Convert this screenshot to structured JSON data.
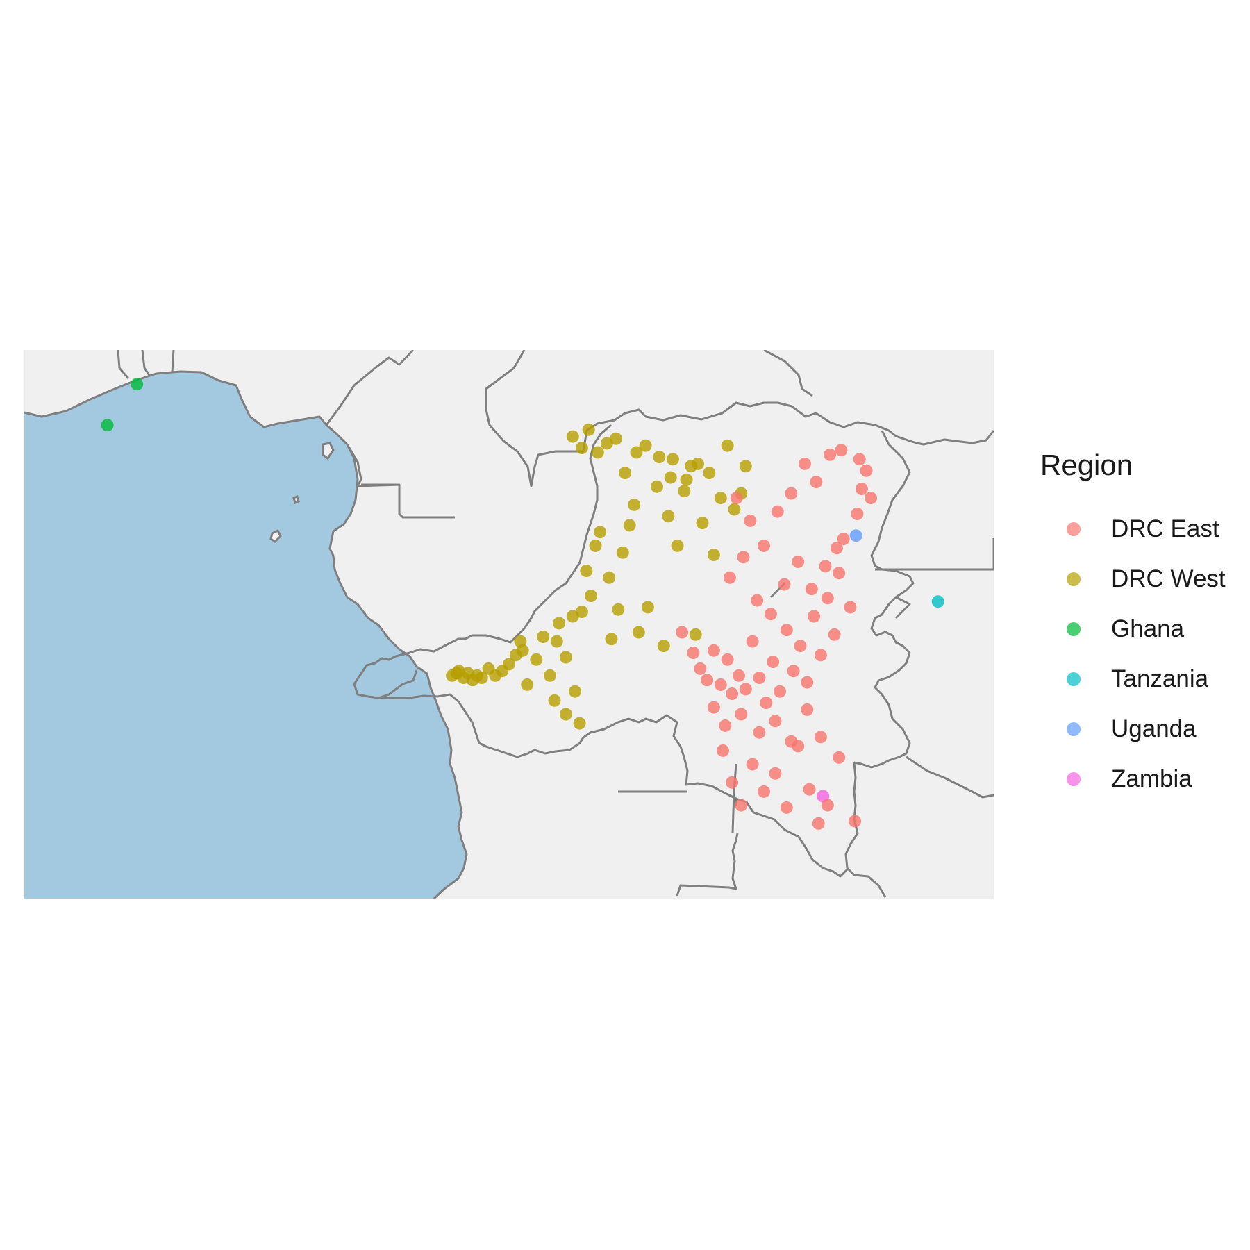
{
  "legend": {
    "title": "Region",
    "items": [
      {
        "label": "DRC East",
        "color": "#F8766D"
      },
      {
        "label": "DRC West",
        "color": "#B79F00"
      },
      {
        "label": "Ghana",
        "color": "#00BA38"
      },
      {
        "label": "Tanzania",
        "color": "#00BFC4"
      },
      {
        "label": "Uganda",
        "color": "#619CFF"
      },
      {
        "label": "Zambia",
        "color": "#F564E3"
      }
    ]
  },
  "colors": {
    "land": "#F0F0F0",
    "ocean": "#A3C9E0",
    "border": "#7f7f7f"
  },
  "chart_data": {
    "type": "scatter",
    "description_free": true,
    "grid": false,
    "legend_position": "right",
    "series": [
      {
        "name": "Ghana",
        "points": [
          [
            -1.55,
            6.9
          ],
          [
            -2.85,
            5.1
          ]
        ]
      },
      {
        "name": "Uganda",
        "points": [
          [
            30.05,
            0.25
          ]
        ]
      },
      {
        "name": "Tanzania",
        "points": [
          [
            33.65,
            -2.65
          ]
        ]
      },
      {
        "name": "Zambia",
        "points": [
          [
            28.6,
            -11.2
          ]
        ]
      },
      {
        "name": "DRC West",
        "points": [
          [
            12.3,
            -5.9
          ],
          [
            12.5,
            -5.8
          ],
          [
            12.6,
            -5.7
          ],
          [
            12.8,
            -6.0
          ],
          [
            13.0,
            -5.8
          ],
          [
            13.2,
            -6.1
          ],
          [
            13.4,
            -5.9
          ],
          [
            13.6,
            -6.0
          ],
          [
            13.9,
            -5.6
          ],
          [
            14.2,
            -5.9
          ],
          [
            14.5,
            -5.7
          ],
          [
            14.8,
            -5.4
          ],
          [
            15.1,
            -5.0
          ],
          [
            15.3,
            -4.4
          ],
          [
            15.4,
            -4.8
          ],
          [
            15.6,
            -6.3
          ],
          [
            16.0,
            -5.2
          ],
          [
            16.3,
            -4.2
          ],
          [
            16.6,
            -5.9
          ],
          [
            16.9,
            -4.4
          ],
          [
            17.0,
            -3.6
          ],
          [
            17.3,
            -5.1
          ],
          [
            17.6,
            -3.3
          ],
          [
            17.7,
            -6.6
          ],
          [
            18.0,
            -3.1
          ],
          [
            18.2,
            -1.3
          ],
          [
            18.4,
            -2.4
          ],
          [
            18.6,
            -0.2
          ],
          [
            18.8,
            0.4
          ],
          [
            19.2,
            -1.6
          ],
          [
            19.3,
            -4.3
          ],
          [
            19.6,
            -3.0
          ],
          [
            19.8,
            -0.5
          ],
          [
            20.1,
            0.7
          ],
          [
            20.3,
            1.6
          ],
          [
            20.5,
            -4.0
          ],
          [
            20.9,
            -2.9
          ],
          [
            21.3,
            2.4
          ],
          [
            21.6,
            -4.6
          ],
          [
            21.8,
            1.1
          ],
          [
            22.0,
            3.6
          ],
          [
            22.2,
            -0.2
          ],
          [
            22.5,
            2.2
          ],
          [
            22.8,
            3.3
          ],
          [
            23.0,
            -4.1
          ],
          [
            23.3,
            0.8
          ],
          [
            23.6,
            3.0
          ],
          [
            23.8,
            -0.6
          ],
          [
            24.1,
            1.9
          ],
          [
            24.4,
            4.2
          ],
          [
            24.7,
            1.4
          ],
          [
            25.0,
            2.1
          ],
          [
            25.2,
            3.3
          ],
          [
            17.6,
            4.6
          ],
          [
            18.0,
            4.1
          ],
          [
            18.3,
            4.9
          ],
          [
            18.7,
            3.9
          ],
          [
            19.1,
            4.3
          ],
          [
            19.5,
            4.5
          ],
          [
            19.9,
            3.0
          ],
          [
            20.4,
            3.9
          ],
          [
            20.8,
            4.2
          ],
          [
            21.4,
            3.7
          ],
          [
            21.9,
            2.8
          ],
          [
            22.6,
            2.7
          ],
          [
            23.1,
            3.4
          ],
          [
            16.8,
            -7.0
          ],
          [
            17.3,
            -7.6
          ],
          [
            17.9,
            -8.0
          ]
        ]
      },
      {
        "name": "DRC East",
        "points": [
          [
            22.4,
            -4.0
          ],
          [
            22.9,
            -4.9
          ],
          [
            23.2,
            -5.6
          ],
          [
            23.5,
            -6.1
          ],
          [
            23.8,
            -4.8
          ],
          [
            24.1,
            -6.3
          ],
          [
            24.4,
            -5.2
          ],
          [
            24.6,
            -6.7
          ],
          [
            24.9,
            -5.9
          ],
          [
            25.2,
            -6.5
          ],
          [
            25.5,
            -4.4
          ],
          [
            25.8,
            -6.0
          ],
          [
            26.1,
            -7.1
          ],
          [
            26.4,
            -5.3
          ],
          [
            26.7,
            -6.6
          ],
          [
            27.0,
            -3.9
          ],
          [
            27.3,
            -5.7
          ],
          [
            27.6,
            -4.6
          ],
          [
            27.9,
            -6.2
          ],
          [
            28.2,
            -3.3
          ],
          [
            28.5,
            -5.0
          ],
          [
            28.8,
            -2.5
          ],
          [
            29.1,
            -4.1
          ],
          [
            29.3,
            -1.4
          ],
          [
            29.5,
            0.1
          ],
          [
            29.8,
            -2.9
          ],
          [
            30.1,
            1.2
          ],
          [
            30.3,
            2.3
          ],
          [
            30.5,
            3.1
          ],
          [
            30.7,
            1.9
          ],
          [
            24.2,
            -9.2
          ],
          [
            24.6,
            -10.6
          ],
          [
            25.0,
            -11.6
          ],
          [
            25.5,
            -9.8
          ],
          [
            26.0,
            -11.0
          ],
          [
            26.5,
            -10.2
          ],
          [
            27.0,
            -11.7
          ],
          [
            27.5,
            -9.0
          ],
          [
            28.0,
            -10.9
          ],
          [
            28.4,
            -12.4
          ],
          [
            28.8,
            -11.6
          ],
          [
            29.3,
            -9.5
          ],
          [
            30.0,
            -12.3
          ],
          [
            24.8,
            1.9
          ],
          [
            25.4,
            0.9
          ],
          [
            26.0,
            -0.2
          ],
          [
            26.6,
            1.3
          ],
          [
            27.2,
            2.1
          ],
          [
            27.8,
            3.4
          ],
          [
            28.3,
            2.6
          ],
          [
            28.9,
            3.8
          ],
          [
            29.4,
            4.0
          ],
          [
            30.2,
            3.6
          ],
          [
            24.5,
            -1.6
          ],
          [
            25.1,
            -0.7
          ],
          [
            25.7,
            -2.6
          ],
          [
            26.3,
            -3.2
          ],
          [
            26.9,
            -1.9
          ],
          [
            27.5,
            -0.9
          ],
          [
            28.1,
            -2.1
          ],
          [
            28.7,
            -1.1
          ],
          [
            29.2,
            -0.3
          ],
          [
            23.8,
            -7.3
          ],
          [
            24.3,
            -8.1
          ],
          [
            25.0,
            -7.6
          ],
          [
            25.8,
            -8.4
          ],
          [
            26.5,
            -7.9
          ],
          [
            27.2,
            -8.8
          ],
          [
            27.9,
            -7.4
          ],
          [
            28.5,
            -8.6
          ]
        ]
      }
    ]
  }
}
